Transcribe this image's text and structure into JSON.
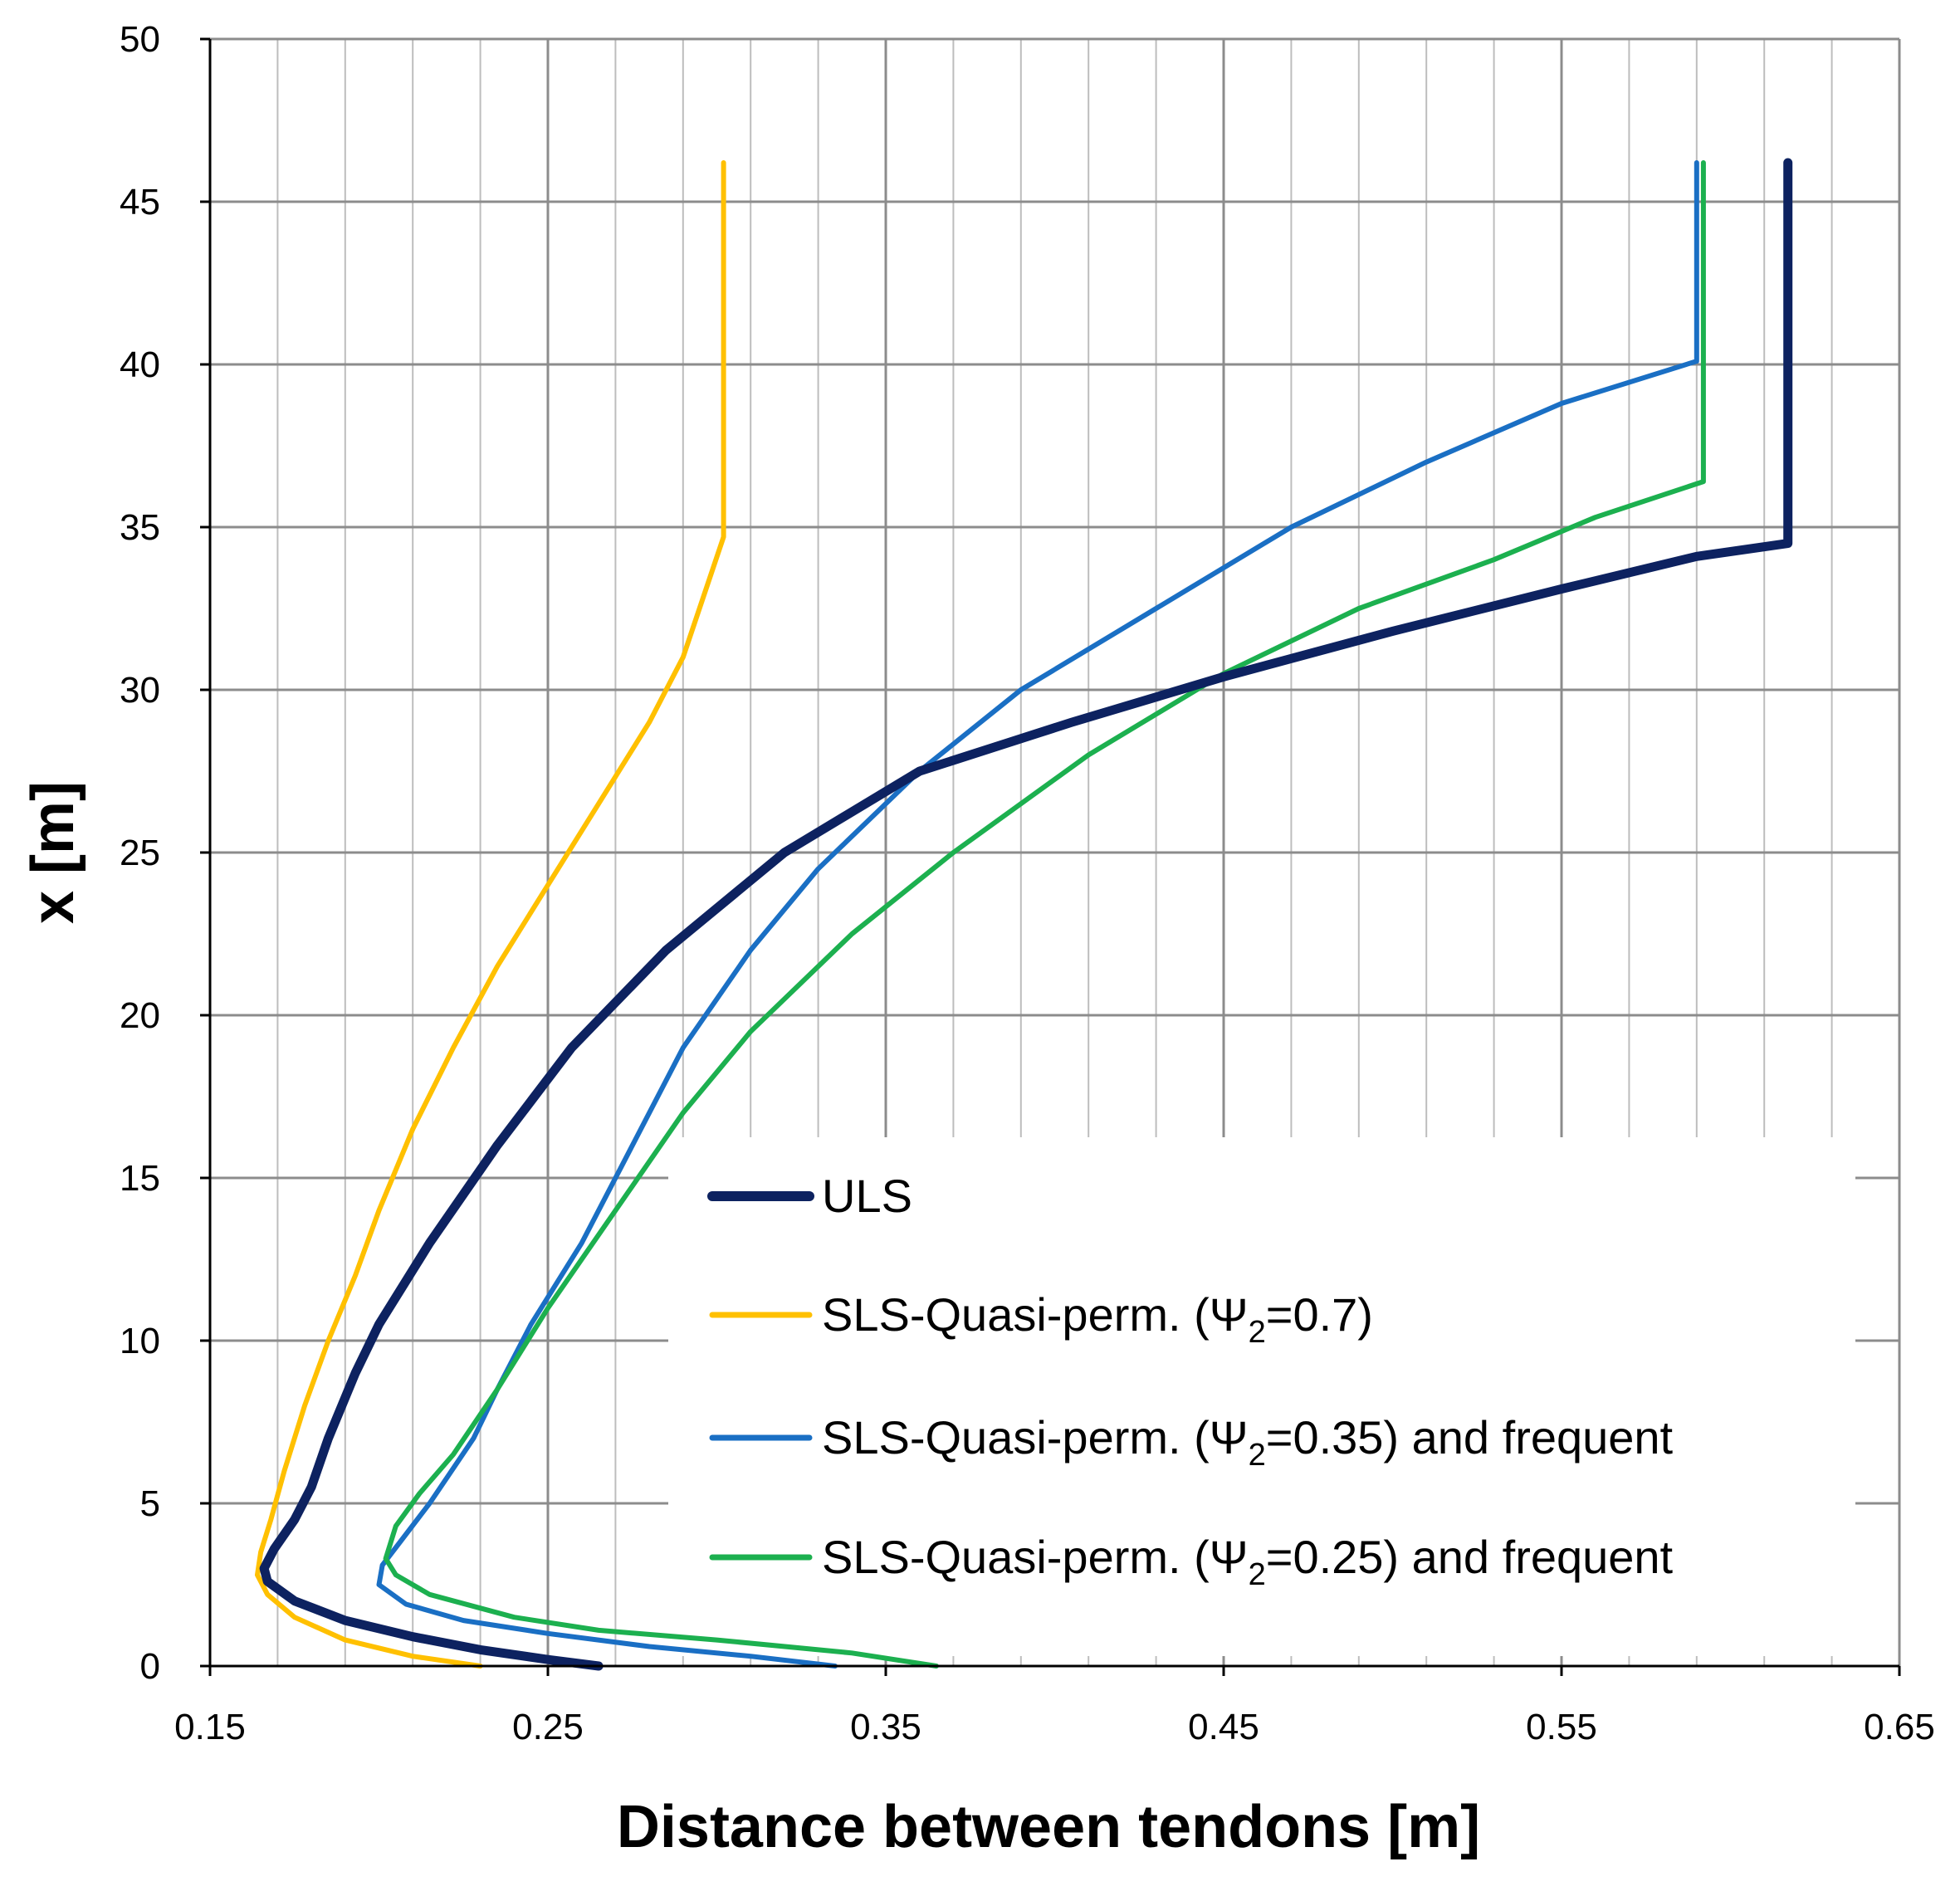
{
  "chart_data": {
    "type": "line",
    "xlabel": "Distance between tendons [m]",
    "ylabel": "x [m]",
    "xlim": [
      0.15,
      0.65
    ],
    "ylim": [
      0,
      50
    ],
    "x_ticks": [
      "0.15",
      "0.25",
      "0.35",
      "0.45",
      "0.55",
      "0.65"
    ],
    "y_ticks": [
      "0",
      "5",
      "10",
      "15",
      "20",
      "25",
      "30",
      "35",
      "40",
      "45",
      "50"
    ],
    "grid": true,
    "legend_position": "bottom-right",
    "series": [
      {
        "name": "ULS",
        "color": "#0d2260",
        "emphasis": "thick",
        "points": [
          [
            0.265,
            0
          ],
          [
            0.25,
            0.2
          ],
          [
            0.23,
            0.5
          ],
          [
            0.21,
            0.9
          ],
          [
            0.19,
            1.4
          ],
          [
            0.175,
            2.0
          ],
          [
            0.167,
            2.6
          ],
          [
            0.166,
            3.0
          ],
          [
            0.169,
            3.6
          ],
          [
            0.175,
            4.5
          ],
          [
            0.18,
            5.5
          ],
          [
            0.185,
            7
          ],
          [
            0.193,
            9
          ],
          [
            0.2,
            10.5
          ],
          [
            0.215,
            13
          ],
          [
            0.235,
            16
          ],
          [
            0.257,
            19
          ],
          [
            0.285,
            22
          ],
          [
            0.32,
            25
          ],
          [
            0.36,
            27.5
          ],
          [
            0.405,
            29
          ],
          [
            0.45,
            30.4
          ],
          [
            0.5,
            31.8
          ],
          [
            0.55,
            33.1
          ],
          [
            0.59,
            34.1
          ],
          [
            0.617,
            34.5
          ],
          [
            0.617,
            46.2
          ]
        ]
      },
      {
        "name": "SLS-Quasi-perm. (Ψ2=0.7)",
        "color": "#ffc000",
        "emphasis": "normal",
        "points": [
          [
            0.23,
            0
          ],
          [
            0.21,
            0.3
          ],
          [
            0.19,
            0.8
          ],
          [
            0.175,
            1.5
          ],
          [
            0.167,
            2.2
          ],
          [
            0.164,
            2.8
          ],
          [
            0.165,
            3.5
          ],
          [
            0.168,
            4.5
          ],
          [
            0.172,
            6
          ],
          [
            0.178,
            8
          ],
          [
            0.185,
            10
          ],
          [
            0.193,
            12
          ],
          [
            0.2,
            14
          ],
          [
            0.21,
            16.5
          ],
          [
            0.222,
            19
          ],
          [
            0.235,
            21.5
          ],
          [
            0.25,
            24
          ],
          [
            0.265,
            26.5
          ],
          [
            0.28,
            29
          ],
          [
            0.29,
            31
          ],
          [
            0.302,
            34.7
          ],
          [
            0.302,
            46.2
          ]
        ]
      },
      {
        "name": "SLS-Quasi-perm. (Ψ2=0.35) and frequent",
        "color": "#1a6fc4",
        "emphasis": "normal",
        "points": [
          [
            0.335,
            0
          ],
          [
            0.31,
            0.3
          ],
          [
            0.28,
            0.6
          ],
          [
            0.25,
            1.0
          ],
          [
            0.225,
            1.4
          ],
          [
            0.208,
            1.9
          ],
          [
            0.2,
            2.5
          ],
          [
            0.201,
            3.1
          ],
          [
            0.215,
            5
          ],
          [
            0.228,
            7
          ],
          [
            0.235,
            8.5
          ],
          [
            0.245,
            10.5
          ],
          [
            0.26,
            13
          ],
          [
            0.275,
            16
          ],
          [
            0.29,
            19
          ],
          [
            0.31,
            22
          ],
          [
            0.33,
            24.5
          ],
          [
            0.36,
            27.5
          ],
          [
            0.39,
            30
          ],
          [
            0.43,
            32.5
          ],
          [
            0.47,
            35
          ],
          [
            0.51,
            37
          ],
          [
            0.55,
            38.8
          ],
          [
            0.59,
            40.1
          ],
          [
            0.59,
            46.2
          ]
        ]
      },
      {
        "name": "SLS-Quasi-perm. (Ψ2=0.25) and frequent",
        "color": "#1cb04f",
        "emphasis": "normal",
        "points": [
          [
            0.365,
            0
          ],
          [
            0.34,
            0.4
          ],
          [
            0.3,
            0.8
          ],
          [
            0.265,
            1.1
          ],
          [
            0.24,
            1.5
          ],
          [
            0.215,
            2.2
          ],
          [
            0.205,
            2.8
          ],
          [
            0.202,
            3.3
          ],
          [
            0.205,
            4.3
          ],
          [
            0.212,
            5.3
          ],
          [
            0.222,
            6.5
          ],
          [
            0.235,
            8.5
          ],
          [
            0.25,
            11
          ],
          [
            0.27,
            14
          ],
          [
            0.29,
            17
          ],
          [
            0.31,
            19.5
          ],
          [
            0.34,
            22.5
          ],
          [
            0.37,
            25
          ],
          [
            0.41,
            28
          ],
          [
            0.45,
            30.5
          ],
          [
            0.49,
            32.5
          ],
          [
            0.53,
            34
          ],
          [
            0.56,
            35.3
          ],
          [
            0.592,
            36.4
          ],
          [
            0.592,
            46.2
          ]
        ]
      }
    ]
  },
  "legend": {
    "items": [
      {
        "label": "ULS"
      },
      {
        "prefix": "SLS-Quasi-perm. (",
        "symbol": "Ψ",
        "sub": "2",
        "suffix": "=0.7)"
      },
      {
        "prefix": "SLS-Quasi-perm. (",
        "symbol": "Ψ",
        "sub": "2",
        "suffix": "=0.35) and frequent"
      },
      {
        "prefix": "SLS-Quasi-perm. (",
        "symbol": "Ψ",
        "sub": "2",
        "suffix": "=0.25) and frequent"
      }
    ]
  }
}
